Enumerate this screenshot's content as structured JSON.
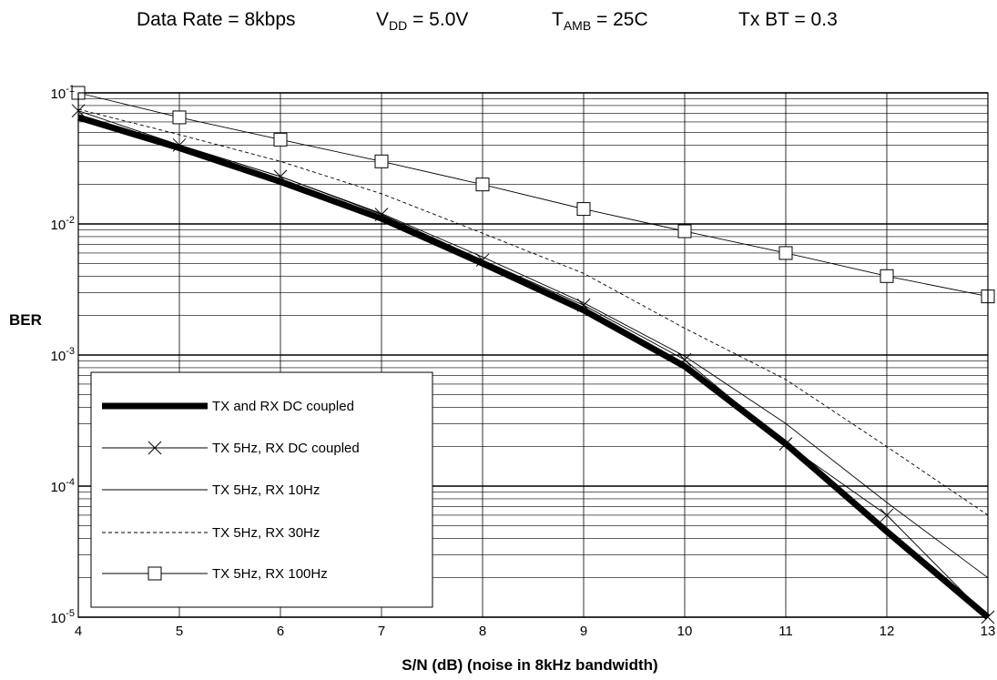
{
  "header": {
    "items": [
      {
        "main": "Data Rate = 8kbps",
        "sub": "",
        "tail": ""
      },
      {
        "main": "V",
        "sub": "DD",
        "tail": " = 5.0V"
      },
      {
        "main": "T",
        "sub": "AMB",
        "tail": " = 25C"
      },
      {
        "main": "Tx BT = 0.3",
        "sub": "",
        "tail": ""
      }
    ]
  },
  "chart_data": {
    "type": "line",
    "xlabel": "S/N (dB) (noise in 8kHz bandwidth)",
    "ylabel": "BER",
    "x_scale": "linear",
    "y_scale": "log",
    "xlim": [
      4,
      13
    ],
    "ylim": [
      1e-05,
      0.1
    ],
    "x_ticks": [
      4,
      5,
      6,
      7,
      8,
      9,
      10,
      11,
      12,
      13
    ],
    "x_tick_labels": [
      "4",
      "5",
      "6",
      "7",
      "8",
      "9",
      "10",
      "11",
      "12",
      "13"
    ],
    "y_ticks": [
      {
        "value": 0.1,
        "base": "10",
        "exp": "-1"
      },
      {
        "value": 0.01,
        "base": "10",
        "exp": "-2"
      },
      {
        "value": 0.001,
        "base": "10",
        "exp": "-3"
      },
      {
        "value": 0.0001,
        "base": "10",
        "exp": "-4"
      },
      {
        "value": 1e-05,
        "base": "10",
        "exp": "-5"
      }
    ],
    "grid": {
      "vertical": true,
      "horizontal_minor": true
    },
    "legend_position": "bottom-left",
    "series": [
      {
        "name": "TX and RX DC coupled",
        "style": "thick",
        "marker": "none",
        "x": [
          4,
          5,
          6,
          7,
          8,
          9,
          10,
          11,
          12,
          13
        ],
        "y": [
          0.065,
          0.038,
          0.021,
          0.011,
          0.005,
          0.0022,
          0.00082,
          0.00021,
          4.5e-05,
          1e-05
        ]
      },
      {
        "name": "TX 5Hz, RX DC coupled",
        "style": "thin",
        "marker": "x",
        "x": [
          4,
          5,
          6,
          7,
          8,
          9,
          10,
          11,
          12,
          13
        ],
        "y": [
          0.073,
          0.04,
          0.023,
          0.0118,
          0.0053,
          0.0024,
          0.00092,
          0.00021,
          6e-05,
          1e-05
        ]
      },
      {
        "name": "TX 5Hz, RX 10Hz",
        "style": "thin",
        "marker": "none",
        "x": [
          4,
          5,
          6,
          7,
          8,
          9,
          10,
          11,
          12,
          13
        ],
        "y": [
          0.068,
          0.04,
          0.023,
          0.012,
          0.0056,
          0.0025,
          0.00098,
          0.0003,
          7.5e-05,
          2e-05
        ]
      },
      {
        "name": "TX 5Hz, RX 30Hz",
        "style": "dashed",
        "marker": "none",
        "x": [
          4,
          5,
          6,
          7,
          8,
          9,
          10,
          11,
          12,
          13
        ],
        "y": [
          0.075,
          0.048,
          0.03,
          0.017,
          0.0085,
          0.0042,
          0.0016,
          0.00065,
          0.0002,
          6e-05
        ]
      },
      {
        "name": "TX 5Hz, RX 100Hz",
        "style": "thin",
        "marker": "square",
        "x": [
          4,
          5,
          6,
          7,
          8,
          9,
          10,
          11,
          12,
          13
        ],
        "y": [
          0.1,
          0.065,
          0.044,
          0.03,
          0.02,
          0.013,
          0.0088,
          0.006,
          0.004,
          0.0028
        ]
      }
    ]
  }
}
